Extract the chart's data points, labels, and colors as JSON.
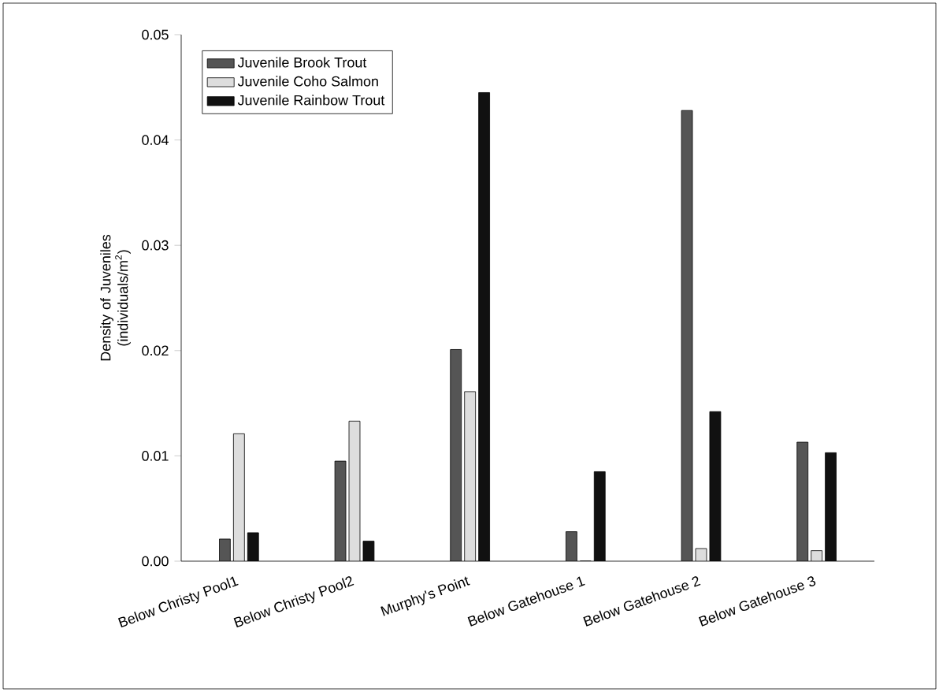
{
  "chart_data": {
    "type": "bar",
    "ylabel": "Density of Juveniles (individuals/m$^{2}$)",
    "categories": [
      "Below Christy Pool1",
      "Below Christy Pool2",
      "Murphy's Point",
      "Below Gatehouse 1",
      "Below Gatehouse 2",
      "Below Gatehouse 3"
    ],
    "series": [
      {
        "name": "Juvenile Brook Trout",
        "color": "#555555",
        "values": [
          0.0021,
          0.0095,
          0.0201,
          0.0028,
          0.0428,
          0.0113
        ]
      },
      {
        "name": "Juvenile Coho Salmon",
        "color": "#dddddd",
        "values": [
          0.0121,
          0.0133,
          0.0161,
          0,
          0.0012,
          0.001
        ]
      },
      {
        "name": "Juvenile Rainbow Trout",
        "color": "#111111",
        "values": [
          0.0027,
          0.0019,
          0.0445,
          0.0085,
          0.0142,
          0.0103
        ]
      }
    ],
    "ylim": [
      0,
      0.05
    ],
    "yticks": [
      {
        "value": 0,
        "label": "0.00"
      },
      {
        "value": 0.01,
        "label": "0.01"
      },
      {
        "value": 0.02,
        "label": "0.02"
      },
      {
        "value": 0.03,
        "label": "0.03"
      },
      {
        "value": 0.04,
        "label": "0.04"
      },
      {
        "value": 0.05,
        "label": "0.05"
      }
    ],
    "legend": "top left",
    "grid": false
  }
}
